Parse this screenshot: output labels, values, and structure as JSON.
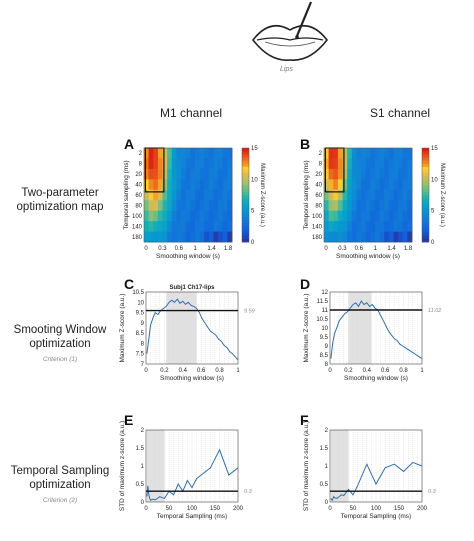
{
  "figure": {
    "lips_label": "Lips",
    "col_m1": "M1 channel",
    "col_s1": "S1 channel",
    "rows": [
      {
        "title_l1": "Two-parameter",
        "title_l2": "optimization map",
        "criterion": ""
      },
      {
        "title_l1": "Smooting Window",
        "title_l2": "optimization",
        "criterion": "Criterion (1)"
      },
      {
        "title_l1": "Temporal Sampling",
        "title_l2": "optimization",
        "criterion": "Criterion (2)"
      }
    ],
    "letters": [
      "A",
      "B",
      "C",
      "D",
      "E",
      "F"
    ]
  },
  "chart_data": [
    {
      "id": "A",
      "type": "heatmap",
      "xlabel": "Smoothing window (s)",
      "ylabel": "Temporal sampling (ms)",
      "xticks": [
        "0",
        "0.3",
        "0.6",
        "1",
        "1.4",
        "1.8"
      ],
      "yticks": [
        "2",
        "8",
        "20",
        "40",
        "60",
        "80",
        "100",
        "140",
        "180"
      ],
      "colorbar": {
        "label": "Maximum Z-score (a.u.)",
        "ticks": [
          "15",
          "10",
          "5",
          "0"
        ],
        "range": [
          0,
          15
        ]
      },
      "peak_col": 1.5,
      "peak_row": 1.0,
      "spread_col": 3.5,
      "spread_row": 6.0,
      "selection_box": {
        "x_range": [
          0.3,
          0.6
        ],
        "y_range": [
          2,
          40
        ]
      }
    },
    {
      "id": "B",
      "type": "heatmap",
      "xlabel": "Smoothing window (s)",
      "ylabel": "Temporal sampling (ms)",
      "xticks": [
        "0",
        "0.3",
        "0.6",
        "1",
        "1.4",
        "1.8"
      ],
      "yticks": [
        "2",
        "8",
        "20",
        "40",
        "60",
        "80",
        "100",
        "140",
        "180"
      ],
      "colorbar": {
        "label": "Maximum Z-score (a.u.)",
        "ticks": [
          "15",
          "10",
          "5",
          "0"
        ],
        "range": [
          0,
          15
        ]
      },
      "peak_col": 1.7,
      "peak_row": 0.8,
      "spread_col": 3.0,
      "spread_row": 5.5,
      "selection_box": {
        "x_range": [
          0.3,
          0.6
        ],
        "y_range": [
          2,
          40
        ]
      }
    },
    {
      "id": "C",
      "type": "line",
      "title": "Subj1 Ch17-lips",
      "xlabel": "Smoothing window (s)",
      "ylabel": "Maximum Z-score (a.u.)",
      "xlim": [
        0,
        1
      ],
      "ylim": [
        7,
        10.5
      ],
      "xticks": [
        "0",
        "0.2",
        "0.4",
        "0.6",
        "0.8",
        "1"
      ],
      "yticks": [
        "7",
        "7.5",
        "8",
        "8.5",
        "9",
        "9.5",
        "10",
        "10.5"
      ],
      "threshold": {
        "value": 9.6,
        "label": "9.59"
      },
      "shaded_range": [
        0.22,
        0.55
      ],
      "x": [
        0.01,
        0.03,
        0.05,
        0.08,
        0.1,
        0.13,
        0.16,
        0.19,
        0.22,
        0.25,
        0.28,
        0.31,
        0.34,
        0.37,
        0.4,
        0.43,
        0.46,
        0.49,
        0.52,
        0.55,
        0.58,
        0.61,
        0.64,
        0.67,
        0.7,
        0.73,
        0.76,
        0.79,
        0.82,
        0.85,
        0.88,
        0.91,
        0.94,
        0.97,
        1.0
      ],
      "y": [
        7.5,
        8.2,
        8.9,
        9.3,
        9.5,
        9.4,
        9.6,
        9.7,
        9.8,
        10.0,
        10.1,
        10.0,
        10.15,
        9.95,
        10.05,
        9.9,
        10.0,
        9.85,
        9.8,
        9.7,
        9.5,
        9.2,
        9.0,
        8.8,
        8.6,
        8.5,
        8.4,
        8.2,
        8.1,
        7.9,
        7.8,
        7.6,
        7.5,
        7.35,
        7.2
      ]
    },
    {
      "id": "D",
      "type": "line",
      "title": "",
      "xlabel": "Smoothing window (s)",
      "ylabel": "Maximum Z-score (a.u.)",
      "xlim": [
        0,
        1
      ],
      "ylim": [
        8,
        12
      ],
      "xticks": [
        "0",
        "0.2",
        "0.4",
        "0.6",
        "0.8",
        "1"
      ],
      "yticks": [
        "8",
        "8.5",
        "9",
        "9.5",
        "10",
        "10.5",
        "11",
        "11.5",
        "12"
      ],
      "threshold": {
        "value": 11.0,
        "label": "11.02"
      },
      "shaded_range": [
        0.2,
        0.45
      ],
      "x": [
        0.01,
        0.03,
        0.05,
        0.08,
        0.1,
        0.13,
        0.16,
        0.19,
        0.22,
        0.25,
        0.28,
        0.31,
        0.34,
        0.37,
        0.4,
        0.43,
        0.46,
        0.49,
        0.52,
        0.55,
        0.58,
        0.61,
        0.64,
        0.67,
        0.7,
        0.73,
        0.76,
        0.79,
        0.82,
        0.85,
        0.88,
        0.91,
        0.94,
        0.97,
        1.0
      ],
      "y": [
        8.3,
        9.2,
        9.7,
        10.1,
        10.4,
        10.6,
        10.8,
        10.9,
        11.1,
        11.3,
        11.4,
        11.2,
        11.5,
        11.3,
        11.4,
        11.2,
        11.3,
        11.1,
        11.0,
        10.7,
        10.4,
        10.1,
        9.8,
        9.6,
        9.4,
        9.3,
        9.1,
        9.0,
        8.9,
        8.8,
        8.7,
        8.6,
        8.5,
        8.4,
        8.3
      ]
    },
    {
      "id": "E",
      "type": "line",
      "title": "",
      "xlabel": "Temporal Sampling (ms)",
      "ylabel": "STD of maximum z-score (a.u.)",
      "xlim": [
        0,
        200
      ],
      "ylim": [
        0,
        2
      ],
      "xticks": [
        "0",
        "50",
        "100",
        "150",
        "200"
      ],
      "yticks": [
        "0",
        "0.5",
        "1",
        "1.5",
        "2"
      ],
      "threshold": {
        "value": 0.3,
        "label": "0.3"
      },
      "shaded_range": [
        2,
        40
      ],
      "x": [
        2,
        4,
        6,
        8,
        10,
        15,
        20,
        25,
        30,
        35,
        40,
        50,
        60,
        70,
        80,
        90,
        100,
        110,
        120,
        140,
        160,
        180,
        200
      ],
      "y": [
        0.15,
        0.45,
        0.2,
        0.1,
        0.05,
        0.08,
        0.06,
        0.1,
        0.15,
        0.12,
        0.1,
        0.3,
        0.2,
        0.5,
        0.3,
        0.6,
        0.4,
        0.65,
        0.75,
        0.95,
        1.45,
        0.75,
        0.95
      ]
    },
    {
      "id": "F",
      "type": "line",
      "title": "",
      "xlabel": "Temporal Sampling (ms)",
      "ylabel": "STD of maximum z-score (a.u.)",
      "xlim": [
        0,
        200
      ],
      "ylim": [
        0,
        2
      ],
      "xticks": [
        "0",
        "50",
        "100",
        "150",
        "200"
      ],
      "yticks": [
        "0",
        "0.5",
        "1",
        "1.5",
        "2"
      ],
      "threshold": {
        "value": 0.3,
        "label": "0.3"
      },
      "shaded_range": [
        2,
        40
      ],
      "x": [
        2,
        5,
        8,
        10,
        15,
        20,
        25,
        30,
        40,
        50,
        60,
        80,
        100,
        120,
        140,
        160,
        180,
        200
      ],
      "y": [
        0.1,
        0.05,
        0.15,
        0.12,
        0.1,
        0.15,
        0.2,
        0.18,
        0.35,
        0.2,
        0.45,
        1.05,
        0.5,
        0.95,
        1.05,
        0.85,
        1.1,
        1.0
      ]
    }
  ]
}
